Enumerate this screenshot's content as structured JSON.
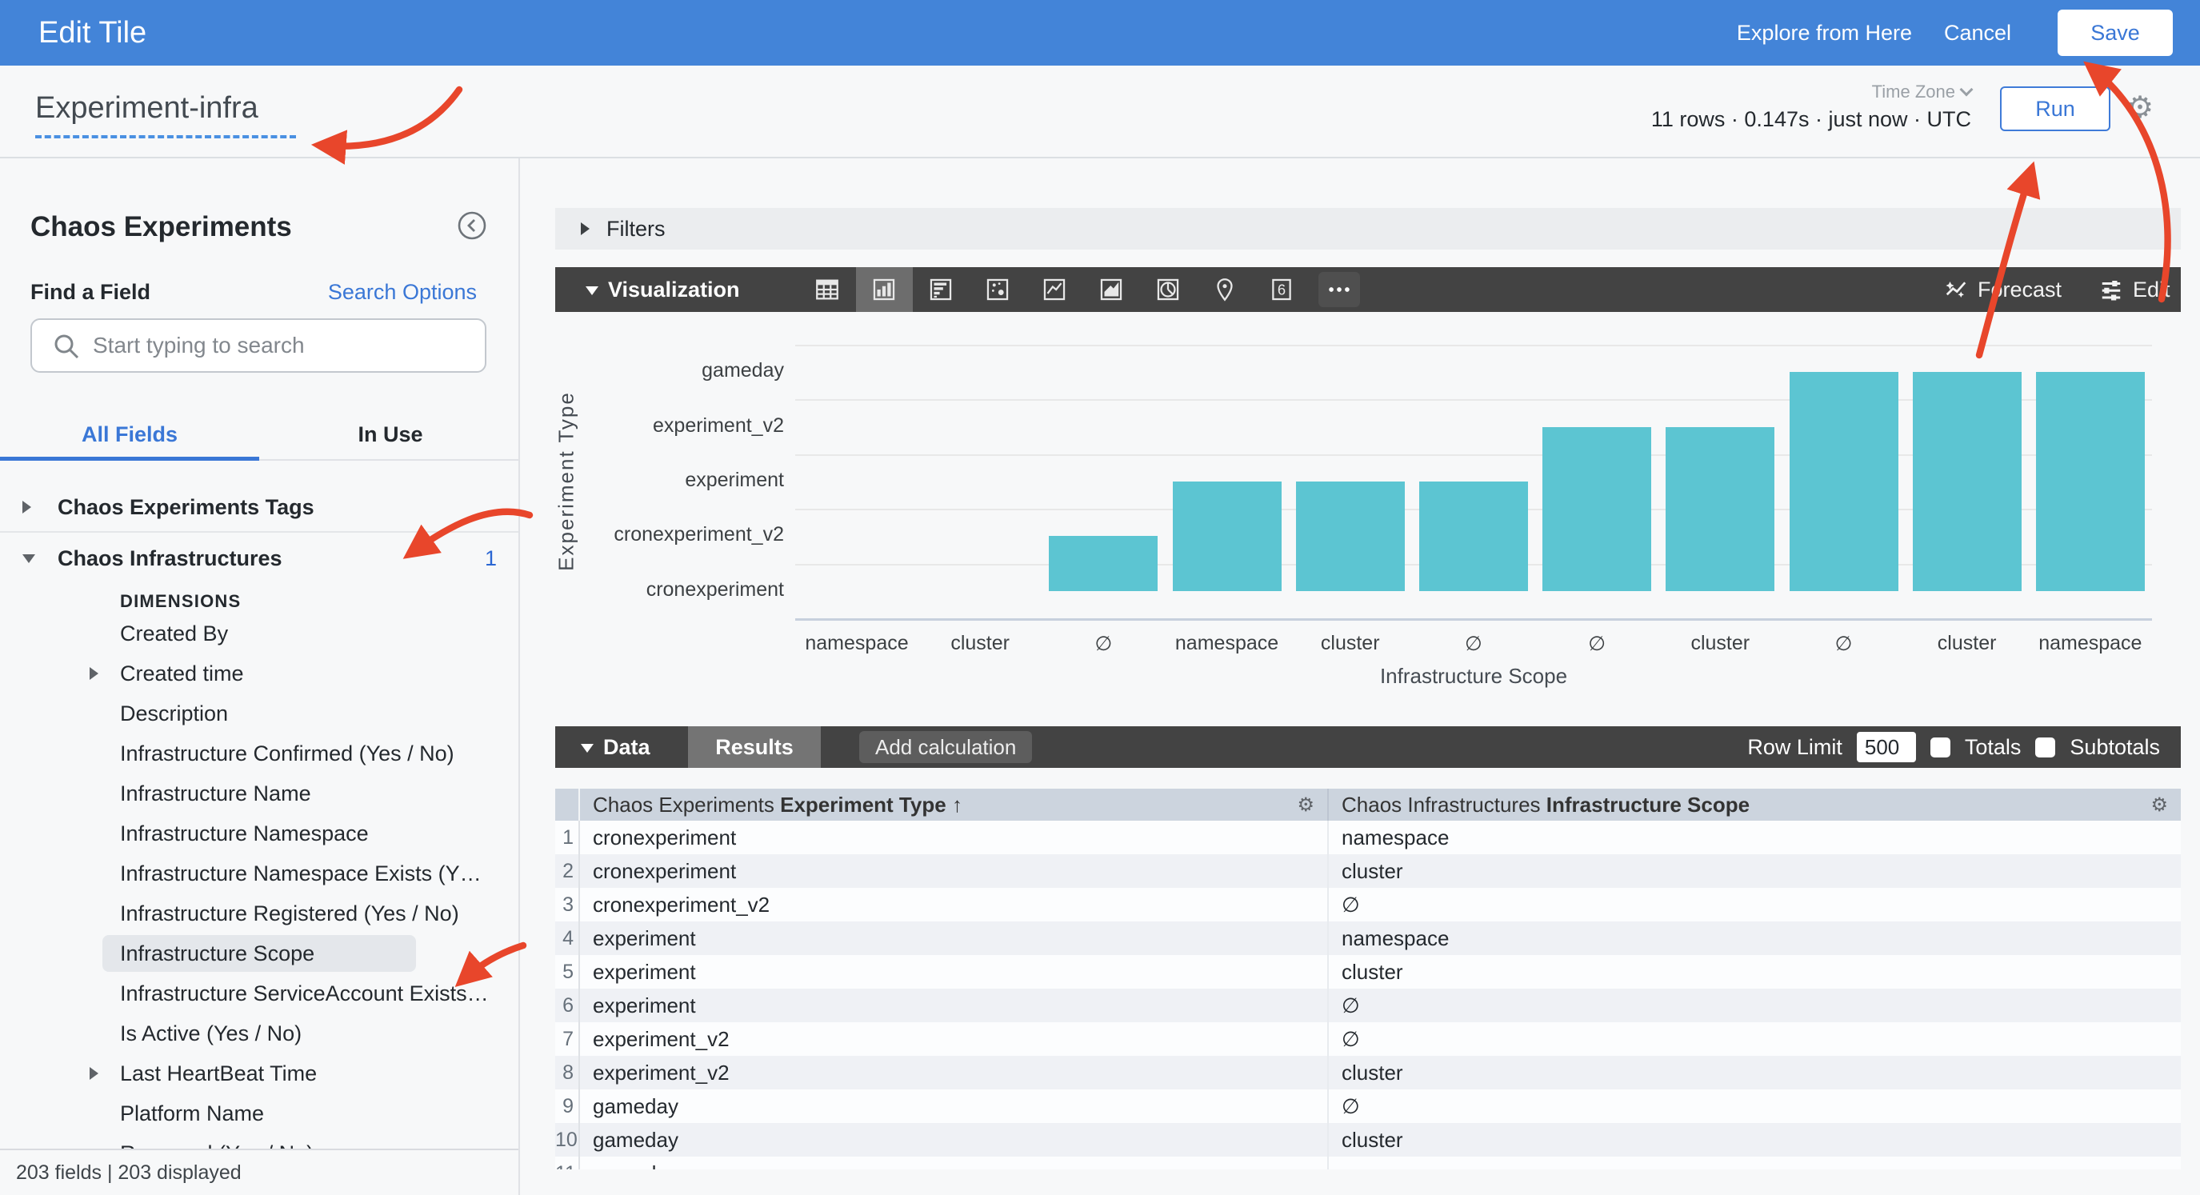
{
  "topbar": {
    "title": "Edit Tile",
    "explore_from_here": "Explore from Here",
    "cancel": "Cancel",
    "save": "Save"
  },
  "header": {
    "tile_name": "Experiment-infra",
    "stats": "11 rows · 0.147s · just now · UTC",
    "time_zone_label": "Time Zone",
    "run": "Run"
  },
  "sidebar": {
    "view_title": "Chaos Experiments",
    "find_a_field": "Find a Field",
    "search_options": "Search Options",
    "search_placeholder": "Start typing to search",
    "tabs": [
      {
        "label": "All Fields",
        "active": true
      },
      {
        "label": "In Use",
        "active": false
      }
    ],
    "tree": [
      {
        "label": "Chaos Experiments Tags",
        "type": "group",
        "caret": "collapsed"
      },
      {
        "label": "Chaos Infrastructures",
        "type": "group",
        "caret": "expanded",
        "badge": "1"
      },
      {
        "label": "DIMENSIONS",
        "type": "section"
      },
      {
        "label": "Created By",
        "type": "field"
      },
      {
        "label": "Created time",
        "type": "field",
        "caret": "collapsed"
      },
      {
        "label": "Description",
        "type": "field"
      },
      {
        "label": "Infrastructure Confirmed (Yes / No)",
        "type": "field"
      },
      {
        "label": "Infrastructure Name",
        "type": "field"
      },
      {
        "label": "Infrastructure Namespace",
        "type": "field"
      },
      {
        "label": "Infrastructure Namespace Exists (Y…",
        "type": "field"
      },
      {
        "label": "Infrastructure Registered (Yes / No)",
        "type": "field"
      },
      {
        "label": "Infrastructure Scope",
        "type": "field",
        "selected": true
      },
      {
        "label": "Infrastructure ServiceAccount Exists…",
        "type": "field"
      },
      {
        "label": "Is Active (Yes / No)",
        "type": "field"
      },
      {
        "label": "Last HeartBeat Time",
        "type": "field",
        "caret": "collapsed"
      },
      {
        "label": "Platform Name",
        "type": "field"
      },
      {
        "label": "Removed (Yes / No)",
        "type": "field",
        "clipped": true
      }
    ],
    "footer": "203 fields | 203 displayed"
  },
  "filters": {
    "label": "Filters"
  },
  "visualization": {
    "label": "Visualization",
    "icons": [
      {
        "name": "table-icon"
      },
      {
        "name": "column-chart-icon",
        "selected": true
      },
      {
        "name": "bar-chart-icon"
      },
      {
        "name": "scatter-chart-icon"
      },
      {
        "name": "line-chart-icon"
      },
      {
        "name": "area-chart-icon"
      },
      {
        "name": "pie-chart-icon"
      },
      {
        "name": "map-pin-icon"
      },
      {
        "name": "single-value-icon",
        "glyph": "6"
      },
      {
        "name": "more-icon"
      }
    ],
    "forecast": "Forecast",
    "edit": "Edit"
  },
  "chart_data": {
    "type": "bar",
    "orientation": "vertical",
    "title": "",
    "xlabel": "Infrastructure Scope",
    "ylabel": "Experiment Type",
    "y_tick_labels_top_to_bottom": [
      "gameday",
      "experiment_v2",
      "experiment",
      "cronexperiment_v2",
      "cronexperiment"
    ],
    "points": [
      {
        "infrastructure_scope": "namespace",
        "experiment_type": "cronexperiment"
      },
      {
        "infrastructure_scope": "cluster",
        "experiment_type": "cronexperiment"
      },
      {
        "infrastructure_scope": "∅",
        "experiment_type": "cronexperiment_v2"
      },
      {
        "infrastructure_scope": "namespace",
        "experiment_type": "experiment"
      },
      {
        "infrastructure_scope": "cluster",
        "experiment_type": "experiment"
      },
      {
        "infrastructure_scope": "∅",
        "experiment_type": "experiment"
      },
      {
        "infrastructure_scope": "∅",
        "experiment_type": "experiment_v2"
      },
      {
        "infrastructure_scope": "cluster",
        "experiment_type": "experiment_v2"
      },
      {
        "infrastructure_scope": "∅",
        "experiment_type": "gameday"
      },
      {
        "infrastructure_scope": "cluster",
        "experiment_type": "gameday"
      },
      {
        "infrastructure_scope": "namespace",
        "experiment_type": "gameday"
      }
    ],
    "note": "bar top sits at the band center of the row's experiment_type; cronexperiment (bottom band) renders zero height",
    "grid": true,
    "legend": "none"
  },
  "data_panel": {
    "label": "Data",
    "results_tab": "Results",
    "add_calculation": "Add calculation",
    "row_limit_label": "Row Limit",
    "row_limit_value": "500",
    "totals_label": "Totals",
    "subtotals_label": "Subtotals"
  },
  "table": {
    "columns": [
      {
        "prefix": "Chaos Experiments",
        "name": "Experiment Type",
        "sort": "↑"
      },
      {
        "prefix": "Chaos Infrastructures",
        "name": "Infrastructure Scope"
      }
    ],
    "rows": [
      [
        "cronexperiment",
        "namespace"
      ],
      [
        "cronexperiment",
        "cluster"
      ],
      [
        "cronexperiment_v2",
        "∅"
      ],
      [
        "experiment",
        "namespace"
      ],
      [
        "experiment",
        "cluster"
      ],
      [
        "experiment",
        "∅"
      ],
      [
        "experiment_v2",
        "∅"
      ],
      [
        "experiment_v2",
        "cluster"
      ],
      [
        "gameday",
        "∅"
      ],
      [
        "gameday",
        "cluster"
      ],
      [
        "gameday",
        "namespace"
      ]
    ]
  },
  "colors": {
    "topbar_blue": "#4384d8",
    "accent_blue": "#3a77d6",
    "bar_teal": "#5cc5d2",
    "dark_toolbar": "#434343",
    "table_header_bg": "#ccd4de",
    "row_stripe": "#eff1f5",
    "annotation_red": "#e8462b",
    "page_bg": "#f7f8f9"
  }
}
